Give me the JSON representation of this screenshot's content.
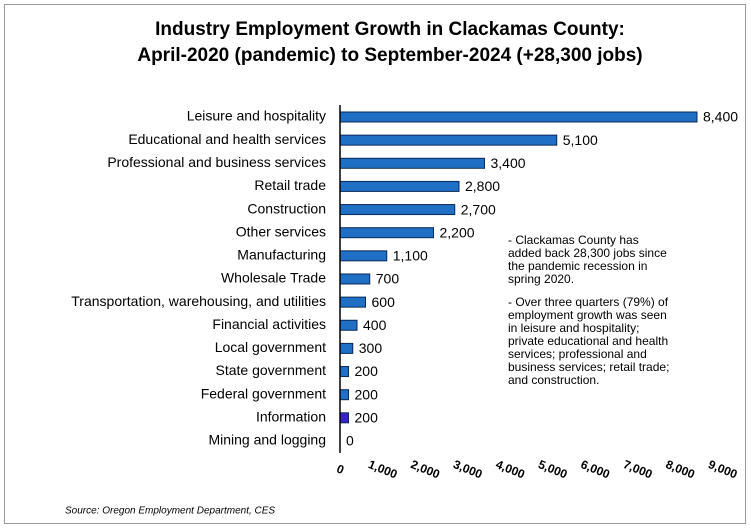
{
  "chart_data": {
    "type": "hbar",
    "title": [
      "Industry Employment Growth in Clackamas County:",
      "April-2020 (pandemic) to September-2024 (+28,300 jobs)"
    ],
    "categories": [
      "Leisure and hospitality",
      "Educational and health services",
      "Professional and business services",
      "Retail trade",
      "Construction",
      "Other services",
      "Manufacturing",
      "Wholesale Trade",
      "Transportation, warehousing, and utilities",
      "Financial activities",
      "Local government",
      "State government",
      "Federal government",
      "Information",
      "Mining and logging"
    ],
    "values": [
      8400,
      5100,
      3400,
      2800,
      2700,
      2200,
      1100,
      700,
      600,
      400,
      300,
      200,
      200,
      200,
      0
    ],
    "value_labels": [
      "8,400",
      "5,100",
      "3,400",
      "2,800",
      "2,700",
      "2,200",
      "1,100",
      "700",
      "600",
      "400",
      "300",
      "200",
      "200",
      "200",
      "0"
    ],
    "colors": [
      "#1f6fc5",
      "#1f6fc5",
      "#1f6fc5",
      "#1f6fc5",
      "#1f6fc5",
      "#1f6fc5",
      "#1f6fc5",
      "#1f6fc5",
      "#1f6fc5",
      "#1f6fc5",
      "#1f6fc5",
      "#1f6fc5",
      "#1f6fc5",
      "#3b22c8",
      "#1f6fc5"
    ],
    "xlim": [
      0,
      9000
    ],
    "xticks": [
      0,
      {
        "value": 1000,
        "label": "1,000"
      },
      {
        "value": 2000,
        "label": "2,000"
      },
      {
        "value": 3000,
        "label": "3,000"
      },
      {
        "value": 4000,
        "label": "4,000"
      },
      {
        "value": 5000,
        "label": "5,000"
      },
      {
        "value": 6000,
        "label": "6,000"
      },
      {
        "value": 7000,
        "label": "7,000"
      },
      {
        "value": 8000,
        "label": "8,000"
      },
      {
        "value": 9000,
        "label": "9,000"
      }
    ],
    "annotations": [
      [
        "- Clackamas County has",
        "added back 28,300 jobs since",
        "the pandemic recession in",
        "spring 2020."
      ],
      [
        "- Over three quarters (79%) of",
        "employment growth was seen",
        "in leisure and hospitality;",
        "private educational and health",
        "services; professional and",
        "business services; retail trade;",
        "and construction."
      ]
    ],
    "source": "Source: Oregon Employment Department, CES"
  }
}
